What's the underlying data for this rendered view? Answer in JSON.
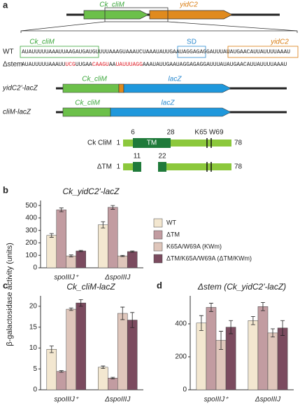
{
  "panel_labels": [
    "a",
    "b",
    "c",
    "d"
  ],
  "gene_map": {
    "genes": [
      "Ck_cliM",
      "yidC2"
    ]
  },
  "sequences": {
    "rows": [
      {
        "label": "WT",
        "segments": [
          "AUAUUUUUAAAUUAAGAUGAUGUUUUAAAGUAAAUCUAAAUAUUGAAUAGGAGAGGAUUUAUAUGAACAUUAUUUUAAAU"
        ]
      },
      {
        "label": "Δstem",
        "segments": [
          "AUAUUUUUAAAUU",
          "UCG",
          "UUGAA",
          "CAAGU",
          "AA",
          "UAUUUAGG",
          "AAAUAUUGAAUAGGAGAGGAUUUAUAUGAACAUUAUUUUAAAU"
        ]
      }
    ],
    "boxes": [
      "Ck_cliM",
      "SD",
      "yidC2"
    ]
  },
  "constructs": [
    {
      "name": "yidC2'-lacZ",
      "parts": [
        "Ck_cliM",
        "lacZ"
      ]
    },
    {
      "name": "cliM-lacZ",
      "parts": [
        "Ck_cliM",
        "lacZ"
      ]
    }
  ],
  "proteins": [
    {
      "name": "Ck CliM",
      "start": 1,
      "end": 78,
      "tm": "TM",
      "tm_bounds": [
        6,
        28
      ],
      "sites": "K65 W69"
    },
    {
      "name": "ΔTM",
      "start": 1,
      "end": 78,
      "tm_bounds": [
        11,
        22
      ]
    }
  ],
  "chart_data": [
    {
      "type": "bar",
      "title": "Ck_yidC2'-lacZ",
      "ylabel": "β-galactosidase activity (units)",
      "categories": [
        "spoIIIJ⁺",
        "ΔspoIIIJ"
      ],
      "ylim": [
        0,
        540
      ],
      "yticks": [
        0,
        100,
        200,
        300,
        400,
        500
      ],
      "legend": "right",
      "series": [
        {
          "name": "WT",
          "color": "#f3e7d0",
          "values": [
            260,
            345
          ],
          "errors": [
            15,
            25
          ]
        },
        {
          "name": "ΔTM",
          "color": "#c29ca1",
          "values": [
            465,
            485
          ],
          "errors": [
            15,
            15
          ]
        },
        {
          "name": "K65A/W69A (KWm)",
          "color": "#dfc6bb",
          "values": [
            95,
            95
          ],
          "errors": [
            8,
            5
          ]
        },
        {
          "name": "ΔTM/K65A/W69A (ΔTM/KWm)",
          "color": "#7b4b5f",
          "values": [
            135,
            130
          ],
          "errors": [
            5,
            5
          ]
        }
      ]
    },
    {
      "type": "bar",
      "title": "Ck_cliM-lacZ",
      "categories": [
        "spoIIIJ⁺",
        "ΔspoIIIJ"
      ],
      "ylim": [
        0,
        22.5
      ],
      "yticks": [
        0,
        5,
        10,
        15,
        20
      ],
      "series": [
        {
          "color": "#f3e7d0",
          "values": [
            9.7,
            5.4
          ],
          "errors": [
            0.8,
            0.3
          ]
        },
        {
          "color": "#c29ca1",
          "values": [
            4.4,
            2.8
          ],
          "errors": [
            0.2,
            0.2
          ]
        },
        {
          "color": "#dfc6bb",
          "values": [
            19.3,
            18.3
          ],
          "errors": [
            0.3,
            1.5
          ]
        },
        {
          "color": "#7b4b5f",
          "values": [
            20.8,
            16.7
          ],
          "errors": [
            0.8,
            1.8
          ]
        }
      ]
    },
    {
      "type": "bar",
      "title": "Δstem (Ck_yidC2'-lacZ)",
      "categories": [
        "spoIIIJ⁺",
        "ΔspoIIIJ"
      ],
      "ylim": [
        0,
        570
      ],
      "yticks": [
        0,
        200,
        400
      ],
      "series": [
        {
          "color": "#f3e7d0",
          "values": [
            405,
            420
          ],
          "errors": [
            45,
            25
          ]
        },
        {
          "color": "#c29ca1",
          "values": [
            500,
            505
          ],
          "errors": [
            25,
            25
          ]
        },
        {
          "color": "#dfc6bb",
          "values": [
            300,
            345
          ],
          "errors": [
            55,
            25
          ]
        },
        {
          "color": "#7b4b5f",
          "values": [
            380,
            375
          ],
          "errors": [
            40,
            45
          ]
        }
      ]
    }
  ]
}
